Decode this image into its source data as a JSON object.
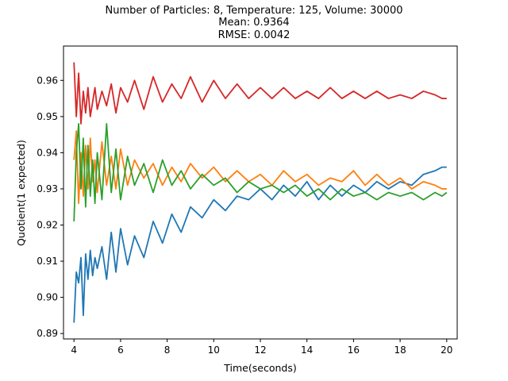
{
  "chart_data": {
    "type": "line",
    "title_lines": [
      "Number of Particles: 8, Temperature: 125, Volume: 30000",
      "Mean: 0.9364",
      "RMSE: 0.0042"
    ],
    "xlabel": "Time(seconds)",
    "ylabel": "Quotient(1 expected)",
    "xlim": [
      3.55,
      20.45
    ],
    "ylim": [
      0.8885,
      0.9695
    ],
    "xticks": [
      4,
      6,
      8,
      10,
      12,
      14,
      16,
      18,
      20
    ],
    "xtick_labels": [
      "4",
      "6",
      "8",
      "10",
      "12",
      "14",
      "16",
      "18",
      "20"
    ],
    "yticks": [
      0.89,
      0.9,
      0.91,
      0.92,
      0.93,
      0.94,
      0.95,
      0.96
    ],
    "ytick_labels": [
      "0.89",
      "0.90",
      "0.91",
      "0.92",
      "0.93",
      "0.94",
      "0.95",
      "0.96"
    ],
    "grid": false,
    "legend": false,
    "series": [
      {
        "color": "#1f77b4",
        "x": [
          4.0,
          4.1,
          4.2,
          4.3,
          4.4,
          4.5,
          4.6,
          4.7,
          4.8,
          4.9,
          5.0,
          5.2,
          5.4,
          5.6,
          5.8,
          6.0,
          6.3,
          6.6,
          7.0,
          7.4,
          7.8,
          8.2,
          8.6,
          9.0,
          9.5,
          10.0,
          10.5,
          11.0,
          11.5,
          12.0,
          12.5,
          13.0,
          13.5,
          14.0,
          14.5,
          15.0,
          15.5,
          16.0,
          16.5,
          17.0,
          17.5,
          18.0,
          18.5,
          19.0,
          19.5,
          19.8,
          20.0
        ],
        "y": [
          0.893,
          0.907,
          0.904,
          0.911,
          0.895,
          0.912,
          0.905,
          0.913,
          0.906,
          0.911,
          0.908,
          0.914,
          0.905,
          0.918,
          0.907,
          0.919,
          0.909,
          0.917,
          0.911,
          0.921,
          0.915,
          0.923,
          0.918,
          0.925,
          0.922,
          0.927,
          0.924,
          0.928,
          0.927,
          0.93,
          0.927,
          0.931,
          0.928,
          0.932,
          0.927,
          0.931,
          0.928,
          0.931,
          0.929,
          0.932,
          0.93,
          0.932,
          0.931,
          0.934,
          0.935,
          0.936,
          0.936
        ]
      },
      {
        "color": "#ff7f0e",
        "x": [
          4.0,
          4.1,
          4.2,
          4.3,
          4.4,
          4.5,
          4.6,
          4.7,
          4.8,
          4.9,
          5.0,
          5.2,
          5.4,
          5.6,
          5.8,
          6.0,
          6.3,
          6.6,
          7.0,
          7.4,
          7.8,
          8.2,
          8.6,
          9.0,
          9.5,
          10.0,
          10.5,
          11.0,
          11.5,
          12.0,
          12.5,
          13.0,
          13.5,
          14.0,
          14.5,
          15.0,
          15.5,
          16.0,
          16.5,
          17.0,
          17.5,
          18.0,
          18.5,
          19.0,
          19.5,
          19.8,
          20.0
        ],
        "y": [
          0.938,
          0.946,
          0.926,
          0.94,
          0.928,
          0.942,
          0.93,
          0.944,
          0.932,
          0.938,
          0.929,
          0.943,
          0.931,
          0.939,
          0.93,
          0.941,
          0.931,
          0.938,
          0.933,
          0.937,
          0.931,
          0.936,
          0.932,
          0.937,
          0.933,
          0.936,
          0.932,
          0.935,
          0.932,
          0.934,
          0.931,
          0.935,
          0.932,
          0.934,
          0.931,
          0.933,
          0.932,
          0.935,
          0.931,
          0.934,
          0.931,
          0.933,
          0.93,
          0.932,
          0.931,
          0.93,
          0.93
        ]
      },
      {
        "color": "#2ca02c",
        "x": [
          4.0,
          4.1,
          4.2,
          4.3,
          4.4,
          4.5,
          4.6,
          4.7,
          4.8,
          4.9,
          5.0,
          5.2,
          5.4,
          5.6,
          5.8,
          6.0,
          6.3,
          6.6,
          7.0,
          7.4,
          7.8,
          8.2,
          8.6,
          9.0,
          9.5,
          10.0,
          10.5,
          11.0,
          11.5,
          12.0,
          12.5,
          13.0,
          13.5,
          14.0,
          14.5,
          15.0,
          15.5,
          16.0,
          16.5,
          17.0,
          17.5,
          18.0,
          18.5,
          19.0,
          19.5,
          19.8,
          20.0
        ],
        "y": [
          0.921,
          0.94,
          0.948,
          0.93,
          0.944,
          0.925,
          0.942,
          0.928,
          0.938,
          0.926,
          0.94,
          0.927,
          0.948,
          0.929,
          0.941,
          0.927,
          0.939,
          0.931,
          0.937,
          0.929,
          0.938,
          0.931,
          0.935,
          0.93,
          0.934,
          0.931,
          0.933,
          0.929,
          0.932,
          0.93,
          0.931,
          0.929,
          0.931,
          0.928,
          0.93,
          0.927,
          0.93,
          0.928,
          0.929,
          0.927,
          0.929,
          0.928,
          0.929,
          0.927,
          0.929,
          0.928,
          0.929
        ]
      },
      {
        "color": "#d62728",
        "x": [
          4.0,
          4.1,
          4.2,
          4.3,
          4.4,
          4.5,
          4.6,
          4.7,
          4.8,
          4.9,
          5.0,
          5.2,
          5.4,
          5.6,
          5.8,
          6.0,
          6.3,
          6.6,
          7.0,
          7.4,
          7.8,
          8.2,
          8.6,
          9.0,
          9.5,
          10.0,
          10.5,
          11.0,
          11.5,
          12.0,
          12.5,
          13.0,
          13.5,
          14.0,
          14.5,
          15.0,
          15.5,
          16.0,
          16.5,
          17.0,
          17.5,
          18.0,
          18.5,
          19.0,
          19.5,
          19.8,
          20.0
        ],
        "y": [
          0.965,
          0.95,
          0.962,
          0.948,
          0.957,
          0.951,
          0.958,
          0.95,
          0.954,
          0.958,
          0.952,
          0.957,
          0.953,
          0.959,
          0.951,
          0.958,
          0.954,
          0.96,
          0.952,
          0.961,
          0.954,
          0.959,
          0.955,
          0.961,
          0.954,
          0.96,
          0.955,
          0.959,
          0.955,
          0.958,
          0.955,
          0.958,
          0.955,
          0.957,
          0.955,
          0.958,
          0.955,
          0.957,
          0.955,
          0.957,
          0.955,
          0.956,
          0.955,
          0.957,
          0.956,
          0.955,
          0.955
        ]
      }
    ]
  }
}
